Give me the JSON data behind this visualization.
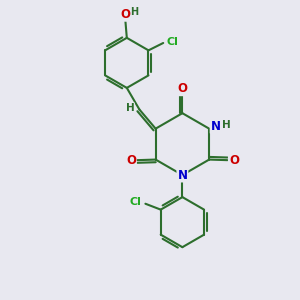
{
  "bg_color": "#e8e8f0",
  "bond_color": "#2d6e2d",
  "bond_width": 1.5,
  "atom_colors": {
    "O": "#cc0000",
    "N": "#0000cc",
    "Cl": "#22aa22",
    "H": "#2d6e2d",
    "C": "#2d6e2d"
  },
  "font_size": 8.5,
  "fig_size": [
    3.0,
    3.0
  ],
  "dpi": 100
}
